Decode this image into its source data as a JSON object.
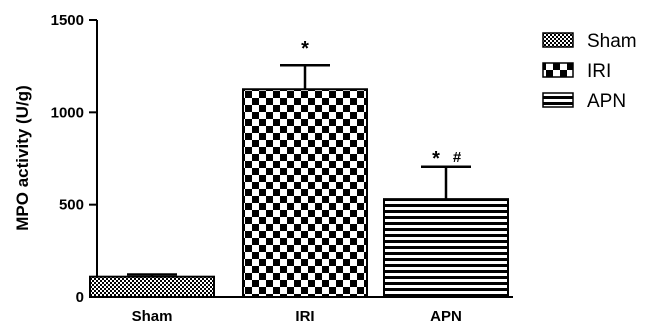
{
  "chart_data": {
    "type": "bar",
    "title": "",
    "xlabel": "",
    "ylabel": "MPO activity (U/g)",
    "ylim": [
      0,
      1500
    ],
    "yticks": [
      "0",
      "500",
      "1000",
      "1500"
    ],
    "ytick_values": [
      0,
      500,
      1000,
      1500
    ],
    "categories": [
      "Sham",
      "IRI",
      "APN"
    ],
    "values": [
      110,
      1125,
      530
    ],
    "errors": [
      12,
      130,
      175
    ],
    "annotations": [
      "",
      "*",
      "* #"
    ],
    "legend": {
      "placement": "top-right",
      "entries": [
        "Sham",
        "IRI",
        "APN"
      ]
    },
    "patterns": [
      "fine-dots",
      "checkerboard",
      "horizontal-stripes"
    ],
    "grid": false,
    "colors": {
      "bar_edge": "#000000",
      "fill_dark": "#000000",
      "fill_light": "#ffffff"
    }
  }
}
